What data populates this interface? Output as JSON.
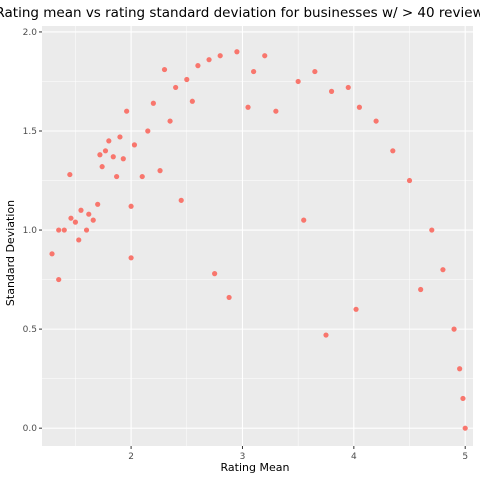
{
  "chart_data": {
    "type": "scatter",
    "title": "Rating mean vs rating standard deviation for businesses w/ > 40 reviews",
    "xlabel": "Rating Mean",
    "ylabel": "Standard Deviation",
    "xlim": [
      1.2,
      5.07
    ],
    "ylim": [
      -0.09,
      2.03
    ],
    "x_ticks": [
      2,
      3,
      4,
      5
    ],
    "x_tick_labels": [
      "2",
      "3",
      "4",
      "5"
    ],
    "y_ticks": [
      0.0,
      0.5,
      1.0,
      1.5,
      2.0
    ],
    "y_tick_labels": [
      "0.0",
      "0.5",
      "1.0",
      "1.5",
      "2.0"
    ],
    "grid": true,
    "legend": "none",
    "point_color": "#F8766D",
    "panel_background": "#EBEBEB",
    "series": [
      {
        "points": [
          [
            1.29,
            0.88
          ],
          [
            1.35,
            0.75
          ],
          [
            1.35,
            1.0
          ],
          [
            1.4,
            1.0
          ],
          [
            1.45,
            1.28
          ],
          [
            1.46,
            1.06
          ],
          [
            1.5,
            1.04
          ],
          [
            1.53,
            0.95
          ],
          [
            1.55,
            1.1
          ],
          [
            1.6,
            1.0
          ],
          [
            1.62,
            1.08
          ],
          [
            1.66,
            1.05
          ],
          [
            1.7,
            1.13
          ],
          [
            1.72,
            1.38
          ],
          [
            1.74,
            1.32
          ],
          [
            1.77,
            1.4
          ],
          [
            1.8,
            1.45
          ],
          [
            1.84,
            1.37
          ],
          [
            1.87,
            1.27
          ],
          [
            1.9,
            1.47
          ],
          [
            1.93,
            1.36
          ],
          [
            1.96,
            1.6
          ],
          [
            2.0,
            0.86
          ],
          [
            2.0,
            1.12
          ],
          [
            2.03,
            1.43
          ],
          [
            2.1,
            1.27
          ],
          [
            2.15,
            1.5
          ],
          [
            2.2,
            1.64
          ],
          [
            2.26,
            1.3
          ],
          [
            2.3,
            1.81
          ],
          [
            2.35,
            1.55
          ],
          [
            2.4,
            1.72
          ],
          [
            2.45,
            1.15
          ],
          [
            2.5,
            1.76
          ],
          [
            2.55,
            1.65
          ],
          [
            2.6,
            1.83
          ],
          [
            2.7,
            1.86
          ],
          [
            2.75,
            0.78
          ],
          [
            2.8,
            1.88
          ],
          [
            2.88,
            0.66
          ],
          [
            2.95,
            1.9
          ],
          [
            3.05,
            1.62
          ],
          [
            3.1,
            1.8
          ],
          [
            3.2,
            1.88
          ],
          [
            3.3,
            1.6
          ],
          [
            3.5,
            1.75
          ],
          [
            3.55,
            1.05
          ],
          [
            3.65,
            1.8
          ],
          [
            3.75,
            0.47
          ],
          [
            3.8,
            1.7
          ],
          [
            3.95,
            1.72
          ],
          [
            4.02,
            0.6
          ],
          [
            4.05,
            1.62
          ],
          [
            4.2,
            1.55
          ],
          [
            4.35,
            1.4
          ],
          [
            4.5,
            1.25
          ],
          [
            4.6,
            0.7
          ],
          [
            4.7,
            1.0
          ],
          [
            4.8,
            0.8
          ],
          [
            4.9,
            0.5
          ],
          [
            4.95,
            0.3
          ],
          [
            4.98,
            0.15
          ],
          [
            5.0,
            0.0
          ]
        ]
      }
    ]
  }
}
